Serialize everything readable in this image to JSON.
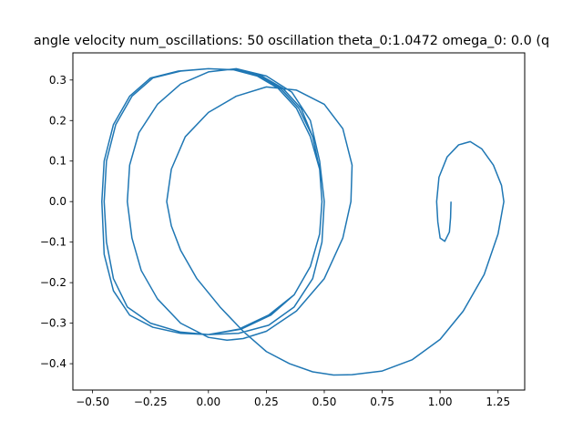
{
  "chart_data": {
    "type": "line",
    "title": "angle velocity num_oscillations: 50 oscillation theta_0:1.0472 omega_0: 0.0 (q",
    "xlabel": "",
    "ylabel": "",
    "xlim": [
      -0.585,
      1.365
    ],
    "ylim": [
      -0.465,
      0.367
    ],
    "grid": false,
    "line_color": "#1f77b4",
    "x_ticks": [
      {
        "value": -0.5,
        "label": "−0.50"
      },
      {
        "value": -0.25,
        "label": "−0.25"
      },
      {
        "value": 0.0,
        "label": "0.00"
      },
      {
        "value": 0.25,
        "label": "0.25"
      },
      {
        "value": 0.5,
        "label": "0.50"
      },
      {
        "value": 0.75,
        "label": "0.75"
      },
      {
        "value": 1.0,
        "label": "1.00"
      },
      {
        "value": 1.25,
        "label": "1.25"
      }
    ],
    "y_ticks": [
      {
        "value": -0.4,
        "label": "−0.4"
      },
      {
        "value": -0.3,
        "label": "−0.3"
      },
      {
        "value": -0.2,
        "label": "−0.2"
      },
      {
        "value": -0.1,
        "label": "−0.1"
      },
      {
        "value": 0.0,
        "label": "0.0"
      },
      {
        "value": 0.1,
        "label": "0.1"
      },
      {
        "value": 0.2,
        "label": "0.2"
      },
      {
        "value": 0.3,
        "label": "0.3"
      }
    ],
    "series": [
      {
        "x": [
          1.047,
          1.045,
          1.04,
          1.02,
          1.0,
          0.99,
          0.985,
          0.995,
          1.03,
          1.08,
          1.13,
          1.18,
          1.23,
          1.265,
          1.275,
          1.25,
          1.19,
          1.1,
          1.0,
          0.88,
          0.75,
          0.62,
          0.54,
          0.45,
          0.35,
          0.25,
          0.15,
          0.05,
          -0.05,
          -0.12,
          -0.16,
          -0.18,
          -0.16,
          -0.1,
          0.0,
          0.12,
          0.25,
          0.38,
          0.5,
          0.58,
          0.62,
          0.615,
          0.58,
          0.5,
          0.38,
          0.25,
          0.15,
          0.08,
          0.0,
          -0.12,
          -0.22,
          -0.29,
          -0.33,
          -0.35,
          -0.34,
          -0.3,
          -0.22,
          -0.12,
          0.0,
          0.12,
          0.25,
          0.36,
          0.44,
          0.48,
          0.5,
          0.49,
          0.45,
          0.37,
          0.26,
          0.13,
          0.0,
          -0.12,
          -0.25,
          -0.35,
          -0.41,
          -0.44,
          -0.45,
          -0.44,
          -0.4,
          -0.33,
          -0.24,
          -0.12,
          0.0,
          0.11,
          0.21,
          0.3,
          0.38,
          0.44,
          0.48,
          0.49,
          0.48,
          0.44,
          0.37,
          0.27,
          0.14,
          0.0,
          -0.12,
          -0.24,
          -0.34,
          -0.41,
          -0.45,
          -0.46,
          -0.45,
          -0.41,
          -0.34,
          -0.25,
          -0.13,
          0.0,
          0.12,
          0.22,
          0.31,
          0.39,
          0.45,
          0.48,
          0.49,
          0.48,
          0.44,
          0.37,
          0.26,
          0.13,
          0.0,
          -0.12,
          -0.24,
          -0.34,
          -0.41,
          -0.45,
          -0.46,
          -0.45,
          -0.41,
          -0.34,
          -0.25,
          -0.13,
          0.0,
          0.12,
          0.23,
          0.32,
          0.4,
          0.45,
          0.48,
          0.49
        ],
        "y": [
          0.0,
          -0.04,
          -0.075,
          -0.098,
          -0.09,
          -0.05,
          0.0,
          0.06,
          0.11,
          0.14,
          0.148,
          0.13,
          0.09,
          0.04,
          0.0,
          -0.08,
          -0.18,
          -0.27,
          -0.34,
          -0.39,
          -0.418,
          -0.427,
          -0.428,
          -0.42,
          -0.4,
          -0.37,
          -0.32,
          -0.26,
          -0.19,
          -0.12,
          -0.06,
          0.0,
          0.08,
          0.16,
          0.22,
          0.26,
          0.283,
          0.275,
          0.24,
          0.18,
          0.09,
          0.0,
          -0.09,
          -0.19,
          -0.27,
          -0.32,
          -0.338,
          -0.342,
          -0.335,
          -0.3,
          -0.24,
          -0.17,
          -0.09,
          0.0,
          0.09,
          0.17,
          0.24,
          0.29,
          0.32,
          0.328,
          0.31,
          0.27,
          0.2,
          0.1,
          0.0,
          -0.1,
          -0.19,
          -0.26,
          -0.305,
          -0.325,
          -0.328,
          -0.322,
          -0.3,
          -0.26,
          -0.19,
          -0.1,
          0.0,
          0.1,
          0.19,
          0.26,
          0.305,
          0.322,
          0.328,
          0.325,
          0.31,
          0.28,
          0.23,
          0.16,
          0.08,
          0.0,
          -0.08,
          -0.16,
          -0.23,
          -0.28,
          -0.315,
          -0.328,
          -0.325,
          -0.31,
          -0.28,
          -0.22,
          -0.13,
          0.0,
          0.1,
          0.19,
          0.26,
          0.305,
          0.322,
          0.328,
          0.325,
          0.31,
          0.28,
          0.23,
          0.16,
          0.08,
          0.0,
          -0.08,
          -0.16,
          -0.23,
          -0.28,
          -0.315,
          -0.328,
          -0.325,
          -0.31,
          -0.28,
          -0.22,
          -0.13,
          0.0,
          0.1,
          0.19,
          0.26,
          0.305,
          0.322,
          0.328,
          0.325,
          0.31,
          0.28,
          0.23,
          0.16,
          0.08,
          0.0
        ]
      }
    ]
  }
}
